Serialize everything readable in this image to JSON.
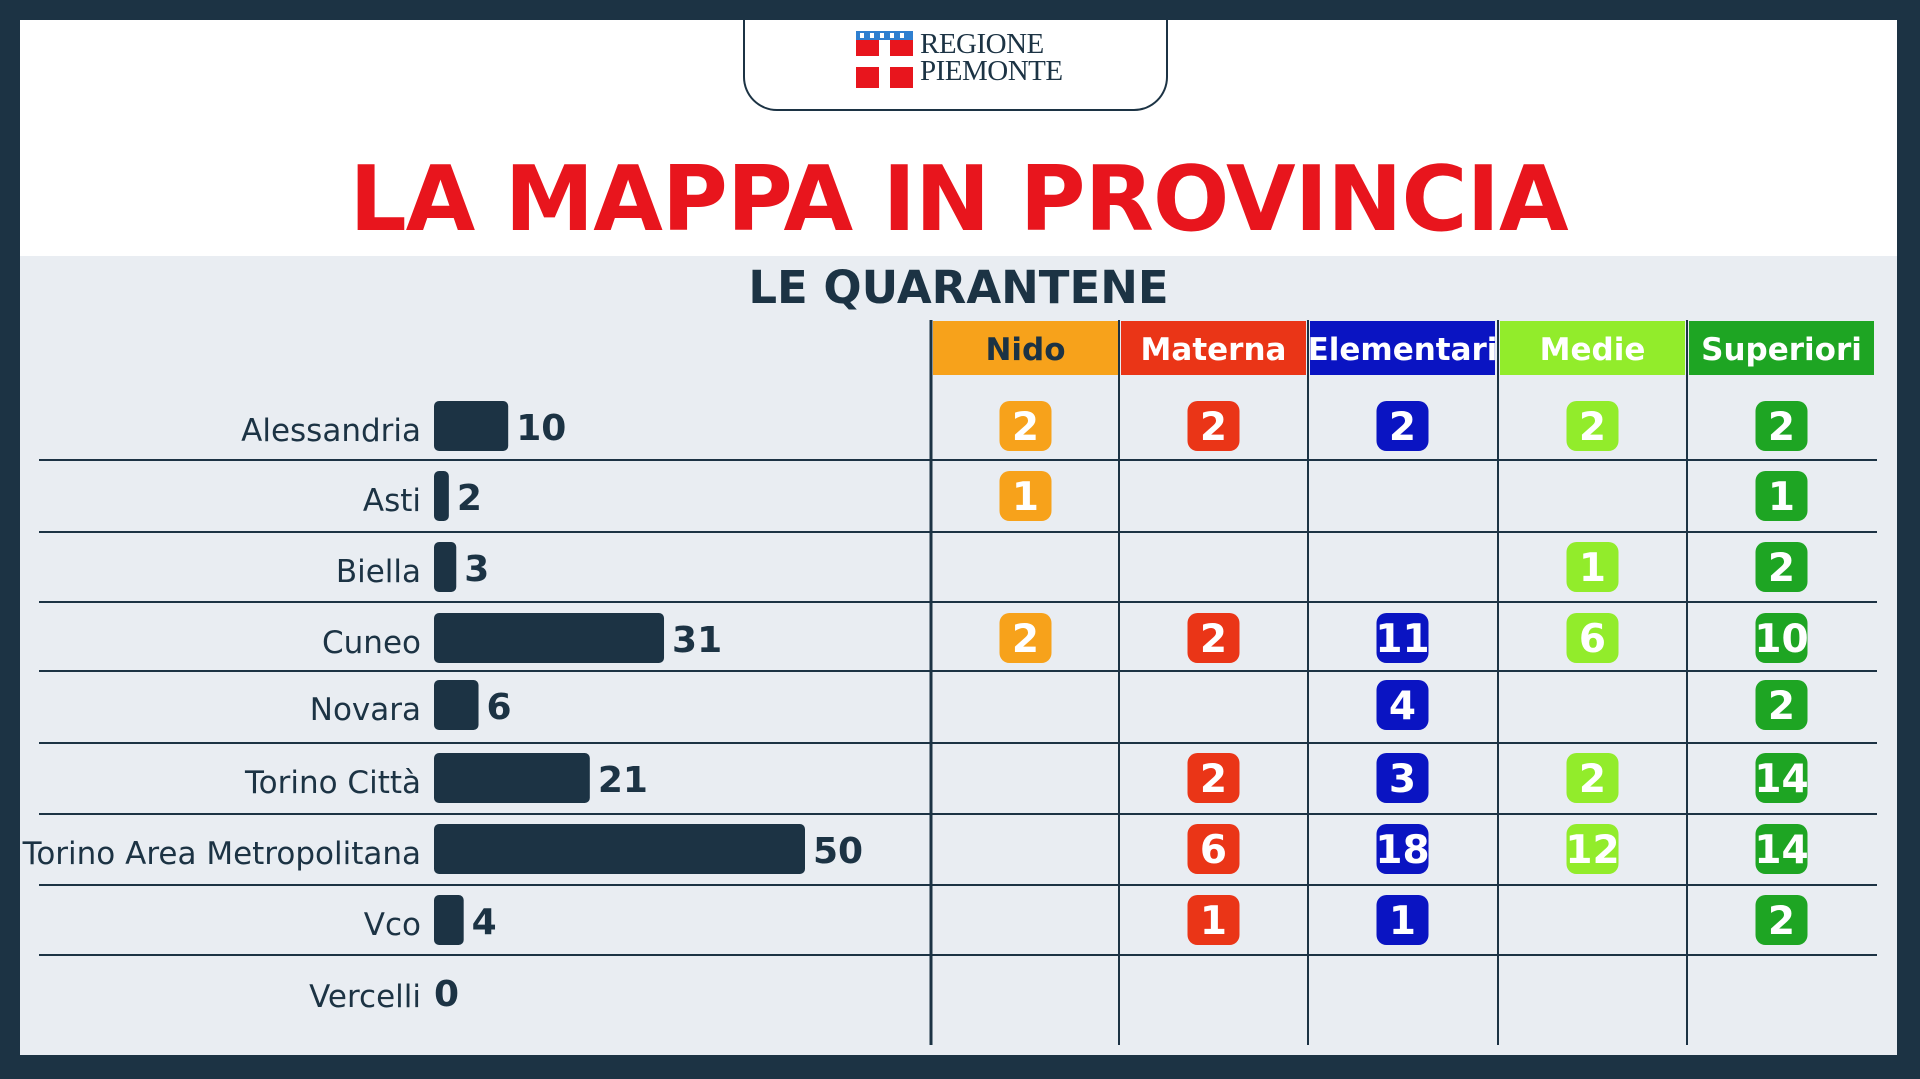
{
  "logo": {
    "line1": "REGIONE",
    "line2": "PIEMONTE",
    "emblem": "piedmont-shield-emblem"
  },
  "header": {
    "title": "LA MAPPA IN PROVINCIA",
    "subtitle": "LE QUARANTENE"
  },
  "colors": {
    "title": "#e8151d",
    "dark": "#1c3344",
    "nido": "#f7a21b",
    "materna": "#ea3517",
    "elementari": "#0a14c2",
    "medie": "#92ec2b",
    "superiori": "#1ea523"
  },
  "chart_data": [
    {
      "type": "bar",
      "orientation": "horizontal",
      "title": "LE QUARANTENE",
      "categories": [
        "Alessandria",
        "Asti",
        "Biella",
        "Cuneo",
        "Novara",
        "Torino Città",
        "Torino Area Metropolitana",
        "Vco",
        "Vercelli"
      ],
      "values": [
        10,
        2,
        3,
        31,
        6,
        21,
        50,
        4,
        0
      ],
      "xlim": [
        0,
        50
      ]
    },
    {
      "type": "table",
      "columns": [
        "Nido",
        "Materna",
        "Elementari",
        "Medie",
        "Superiori"
      ],
      "rows": [
        "Alessandria",
        "Asti",
        "Biella",
        "Cuneo",
        "Novara",
        "Torino Città",
        "Torino Area Metropolitana",
        "Vco",
        "Vercelli"
      ],
      "cells": [
        [
          2,
          2,
          2,
          2,
          2
        ],
        [
          1,
          null,
          null,
          null,
          1
        ],
        [
          null,
          null,
          null,
          1,
          2
        ],
        [
          2,
          2,
          11,
          6,
          10
        ],
        [
          null,
          null,
          4,
          null,
          2
        ],
        [
          null,
          2,
          3,
          2,
          14
        ],
        [
          null,
          6,
          18,
          12,
          14
        ],
        [
          null,
          1,
          1,
          null,
          2
        ],
        [
          null,
          null,
          null,
          null,
          null
        ]
      ]
    }
  ]
}
